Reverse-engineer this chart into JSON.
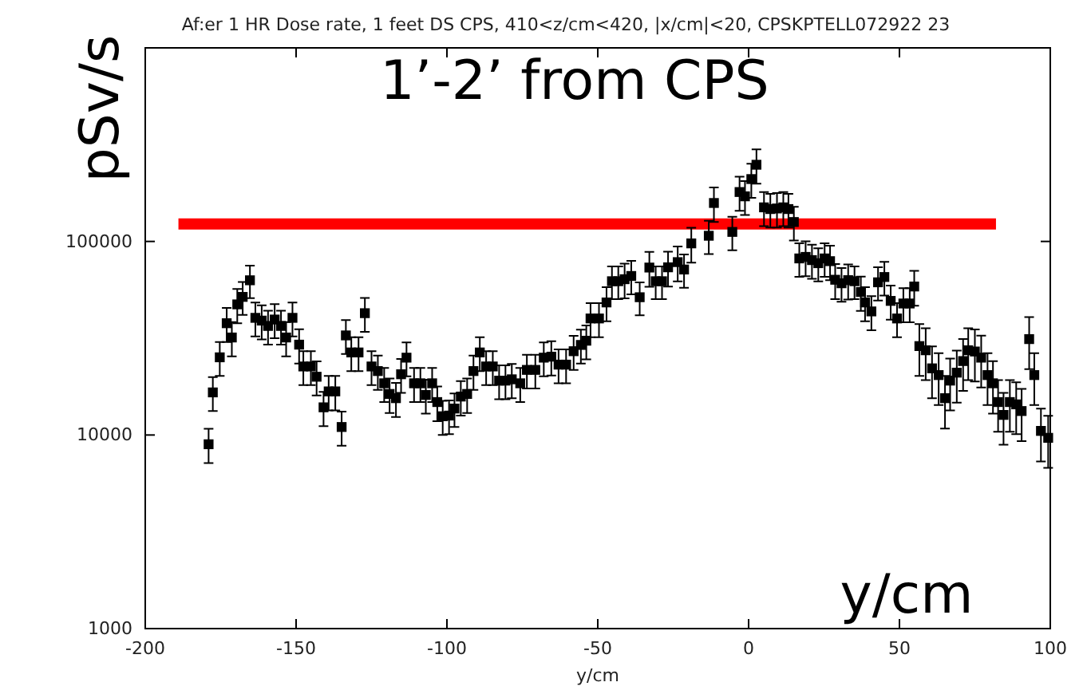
{
  "chart_data": {
    "type": "scatter",
    "title": "Af:er 1 HR Dose rate, 1 feet DS CPS,  410<z/cm<420,   |x/cm|<20, CPSKPTELL072922 23",
    "xlabel": "y/cm",
    "ylabel": "pSv/s",
    "annotations": [
      "1’-2’ from CPS",
      "y/cm"
    ],
    "log": "y",
    "grid": false,
    "xlim": [
      -200,
      100
    ],
    "xticks": [
      -200,
      -150,
      -100,
      -50,
      0,
      50,
      100
    ],
    "ylim": [
      1000,
      1000000
    ],
    "yticks": [
      1000,
      10000,
      100000
    ],
    "series": [
      {
        "color": "#000000",
        "marker": "square",
        "x": [
          -179,
          -177.6,
          -175.3,
          -173,
          -171.3,
          -169.5,
          -167.7,
          -165.3,
          -163.5,
          -161.4,
          -159.3,
          -157.1,
          -155,
          -153.3,
          -151.2,
          -149,
          -147.6,
          -145.1,
          -143.2,
          -140.9,
          -139.2,
          -137,
          -134.9,
          -133.5,
          -131.7,
          -129.3,
          -127.2,
          -125,
          -122.9,
          -120.8,
          -119,
          -116.9,
          -115.2,
          -113.4,
          -110.9,
          -108.8,
          -107,
          -104.9,
          -103.2,
          -101.4,
          -99.3,
          -97.5,
          -95.4,
          -93.3,
          -91.2,
          -89.1,
          -87,
          -84.8,
          -82.7,
          -80.6,
          -78.5,
          -75.7,
          -73.5,
          -70.7,
          -67.9,
          -65.4,
          -63,
          -60.5,
          -58,
          -55.6,
          -53.8,
          -52.4,
          -49.6,
          -47.1,
          -45.3,
          -43.2,
          -41.1,
          -38.9,
          -36.1,
          -32.9,
          -30.8,
          -28.7,
          -26.7,
          -23.5,
          -21.4,
          -19,
          -13.2,
          -11.5,
          -5.4,
          -3,
          -1.2,
          0.9,
          2.6,
          5.1,
          7.2,
          9.4,
          11.5,
          13.2,
          15,
          16.8,
          18.9,
          21,
          23.1,
          25.2,
          27,
          28.7,
          30.8,
          33,
          35.1,
          37.2,
          38.6,
          40.7,
          42.9,
          45,
          47.1,
          49.2,
          51.3,
          53.4,
          54.9,
          56.6,
          58.7,
          60.8,
          63,
          65.1,
          66.8,
          69,
          71.1,
          72.8,
          75,
          77.1,
          79.2,
          81,
          82.7,
          84.5,
          86.6,
          88.7,
          90.5,
          93,
          94.7,
          96.9,
          99.3
        ],
        "values": [
          8960,
          16600,
          25200,
          37800,
          31900,
          47300,
          51700,
          63000,
          40300,
          39000,
          36600,
          39500,
          36600,
          31900,
          40300,
          29300,
          22600,
          22600,
          20000,
          13900,
          16800,
          16800,
          11000,
          32700,
          26700,
          26700,
          42600,
          22600,
          21400,
          18500,
          16300,
          15500,
          20600,
          25100,
          18500,
          18500,
          16100,
          18500,
          14800,
          12500,
          12600,
          13700,
          15800,
          16300,
          21400,
          26700,
          22600,
          22600,
          19100,
          19100,
          19400,
          18500,
          21700,
          21700,
          25100,
          25400,
          23100,
          23100,
          27100,
          29200,
          30700,
          40000,
          40000,
          48400,
          62300,
          62300,
          63800,
          66300,
          51500,
          73300,
          62300,
          62300,
          73500,
          78200,
          71600,
          97700,
          107000,
          158000,
          112000,
          180000,
          171000,
          210000,
          249000,
          150000,
          147000,
          148000,
          150000,
          147000,
          126000,
          81700,
          83200,
          80100,
          77200,
          81700,
          79100,
          63400,
          60800,
          63100,
          62300,
          54800,
          48400,
          43500,
          61500,
          65500,
          49300,
          40000,
          47800,
          47800,
          58500,
          28800,
          27400,
          22100,
          20400,
          15500,
          19100,
          21000,
          24100,
          27400,
          27000,
          25100,
          20400,
          18500,
          14800,
          12700,
          14800,
          14400,
          13300,
          31300,
          20400,
          10500,
          9670
        ],
        "errors": [
          1800,
          3300,
          5000,
          7600,
          6400,
          9500,
          10000,
          12000,
          8000,
          7800,
          7300,
          7900,
          7300,
          6400,
          8000,
          5900,
          4500,
          4500,
          4000,
          2800,
          3400,
          3400,
          2200,
          6500,
          5300,
          5300,
          8500,
          4500,
          4300,
          3700,
          3300,
          3100,
          4100,
          5000,
          3700,
          3700,
          3200,
          3700,
          3000,
          2500,
          2500,
          2700,
          3200,
          3300,
          4300,
          5300,
          4500,
          4500,
          3800,
          3800,
          3900,
          3700,
          4300,
          4300,
          5000,
          5100,
          4600,
          4600,
          5400,
          5800,
          6100,
          8000,
          8000,
          9700,
          12000,
          12000,
          13000,
          13000,
          10000,
          15000,
          12000,
          12000,
          15000,
          16000,
          14000,
          20000,
          21000,
          32000,
          22000,
          36000,
          34000,
          42000,
          50000,
          30000,
          29000,
          30000,
          30000,
          29000,
          25000,
          16000,
          17000,
          16000,
          15000,
          16000,
          16000,
          13000,
          12000,
          13000,
          12000,
          11000,
          9700,
          8700,
          12000,
          13000,
          9900,
          8000,
          9600,
          9600,
          12000,
          8600,
          8200,
          6600,
          6100,
          4700,
          5700,
          6300,
          7200,
          8200,
          8100,
          7500,
          6100,
          5600,
          4400,
          3800,
          4400,
          4300,
          4000,
          9400,
          6100,
          3200,
          2900
        ]
      },
      {
        "type": "line",
        "color": "#ff0000",
        "x": [
          -189,
          82
        ],
        "values": [
          123000,
          123000
        ],
        "line_style": "solid",
        "marker": "none"
      }
    ]
  }
}
